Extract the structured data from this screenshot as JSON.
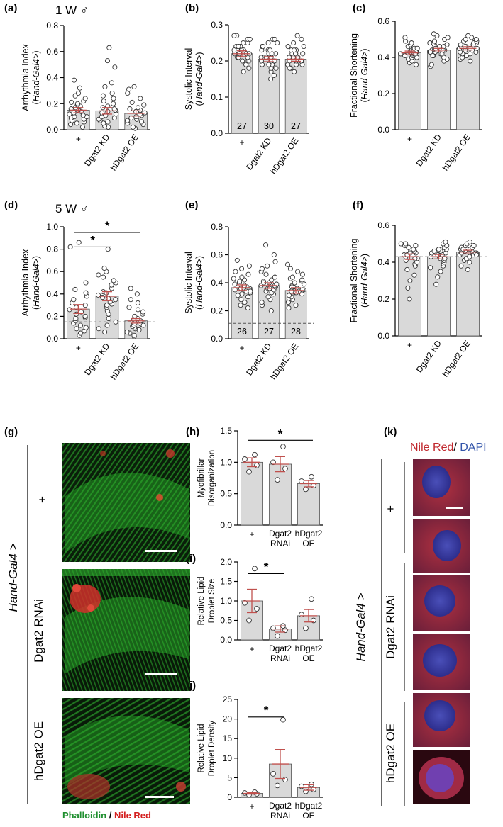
{
  "figure": {
    "cohort_labels": [
      "1 W ♂",
      "5 W ♂"
    ],
    "genotype_driver": "Hand-Gal4 >",
    "genotype_rows": [
      "+",
      "Dgat2 RNAi",
      "hDgat2 OE"
    ],
    "stain_legend_g": [
      {
        "text": "Phalloidin",
        "color": "#1f8f2f"
      },
      {
        "text": " / ",
        "color": "#000000"
      },
      {
        "text": "Nile Red",
        "color": "#d42020"
      }
    ],
    "stain_legend_k": [
      {
        "text": "Nile Red",
        "color": "#c0272d"
      },
      {
        "text": "/ ",
        "color": "#000000"
      },
      {
        "text": "DAPI",
        "color": "#3355aa"
      }
    ],
    "panel_labels": {
      "g": "(g)",
      "k": "(k)"
    }
  },
  "chart_data": [
    {
      "id": "a",
      "label": "(a)",
      "type": "bar",
      "ylabel": "Arrhythmia Index",
      "ylabel_sub": "(Hand-Gal4>)",
      "categories": [
        "+",
        "Dgat2 KD",
        "hDgat2 OE"
      ],
      "ylim": [
        0,
        0.8
      ],
      "yticks": [
        0.0,
        0.2,
        0.4,
        0.6,
        0.8
      ],
      "values": [
        0.15,
        0.145,
        0.125
      ],
      "errors": [
        0.02,
        0.025,
        0.02
      ],
      "n_labels": [],
      "baseline": null,
      "points": [
        [
          0.02,
          0.04,
          0.05,
          0.06,
          0.07,
          0.08,
          0.09,
          0.1,
          0.1,
          0.11,
          0.12,
          0.13,
          0.14,
          0.15,
          0.16,
          0.17,
          0.18,
          0.19,
          0.2,
          0.21,
          0.22,
          0.24,
          0.26,
          0.28,
          0.32,
          0.38
        ],
        [
          0.02,
          0.03,
          0.05,
          0.06,
          0.07,
          0.08,
          0.09,
          0.1,
          0.11,
          0.12,
          0.13,
          0.14,
          0.15,
          0.16,
          0.17,
          0.18,
          0.2,
          0.22,
          0.24,
          0.26,
          0.28,
          0.33,
          0.36,
          0.48,
          0.53,
          0.63
        ],
        [
          0.01,
          0.02,
          0.04,
          0.05,
          0.06,
          0.07,
          0.08,
          0.09,
          0.1,
          0.11,
          0.12,
          0.13,
          0.14,
          0.15,
          0.16,
          0.17,
          0.19,
          0.21,
          0.24,
          0.28,
          0.31,
          0.33
        ]
      ],
      "sig": []
    },
    {
      "id": "b",
      "label": "(b)",
      "type": "bar",
      "ylabel": "Systolic Interval",
      "ylabel_sub": "(Hand-Gal4>)",
      "categories": [
        "+",
        "Dgat2 KD",
        "hDgat2 OE"
      ],
      "ylim": [
        0,
        0.3
      ],
      "yticks": [
        0.0,
        0.1,
        0.2,
        0.3
      ],
      "values": [
        0.22,
        0.205,
        0.205
      ],
      "errors": [
        0.008,
        0.007,
        0.006
      ],
      "n_labels": [
        "27",
        "30",
        "27"
      ],
      "baseline": null,
      "points": [
        [
          0.17,
          0.18,
          0.19,
          0.19,
          0.2,
          0.2,
          0.2,
          0.21,
          0.21,
          0.21,
          0.22,
          0.22,
          0.22,
          0.22,
          0.23,
          0.23,
          0.23,
          0.24,
          0.24,
          0.24,
          0.25,
          0.25,
          0.26,
          0.26,
          0.27,
          0.27,
          0.23
        ],
        [
          0.15,
          0.16,
          0.17,
          0.18,
          0.18,
          0.19,
          0.19,
          0.19,
          0.2,
          0.2,
          0.2,
          0.2,
          0.21,
          0.21,
          0.21,
          0.21,
          0.22,
          0.22,
          0.22,
          0.22,
          0.23,
          0.23,
          0.23,
          0.24,
          0.24,
          0.25,
          0.25,
          0.26,
          0.26,
          0.2
        ],
        [
          0.17,
          0.18,
          0.18,
          0.19,
          0.19,
          0.19,
          0.2,
          0.2,
          0.2,
          0.2,
          0.21,
          0.21,
          0.21,
          0.21,
          0.22,
          0.22,
          0.22,
          0.22,
          0.23,
          0.23,
          0.23,
          0.24,
          0.24,
          0.25,
          0.26,
          0.27,
          0.21
        ]
      ],
      "sig": []
    },
    {
      "id": "c",
      "label": "(c)",
      "type": "bar",
      "ylabel": "Fractional Shortening",
      "ylabel_sub": "(Hand-Gal4>)",
      "categories": [
        "+",
        "Dgat2 KD",
        "hDgat2 OE"
      ],
      "ylim": [
        0,
        0.6
      ],
      "yticks": [
        0.0,
        0.2,
        0.4,
        0.6
      ],
      "values": [
        0.425,
        0.44,
        0.45
      ],
      "errors": [
        0.01,
        0.01,
        0.009
      ],
      "n_labels": [],
      "baseline": null,
      "points": [
        [
          0.36,
          0.37,
          0.38,
          0.39,
          0.4,
          0.4,
          0.41,
          0.41,
          0.42,
          0.42,
          0.42,
          0.43,
          0.43,
          0.43,
          0.44,
          0.44,
          0.44,
          0.45,
          0.45,
          0.46,
          0.46,
          0.47,
          0.48,
          0.49,
          0.51,
          0.43,
          0.42
        ],
        [
          0.35,
          0.36,
          0.38,
          0.39,
          0.4,
          0.41,
          0.41,
          0.42,
          0.42,
          0.43,
          0.43,
          0.44,
          0.44,
          0.44,
          0.45,
          0.45,
          0.46,
          0.46,
          0.47,
          0.47,
          0.48,
          0.48,
          0.49,
          0.5,
          0.51,
          0.52,
          0.53,
          0.44,
          0.43,
          0.45
        ],
        [
          0.38,
          0.39,
          0.4,
          0.41,
          0.42,
          0.42,
          0.43,
          0.43,
          0.44,
          0.44,
          0.45,
          0.45,
          0.45,
          0.46,
          0.46,
          0.47,
          0.47,
          0.48,
          0.48,
          0.49,
          0.49,
          0.5,
          0.5,
          0.51,
          0.52,
          0.45,
          0.46
        ]
      ],
      "sig": []
    },
    {
      "id": "d",
      "label": "(d)",
      "type": "bar",
      "ylabel": "Arrhythmia Index",
      "ylabel_sub": "(Hand-Gal4>)",
      "categories": [
        "+",
        "Dgat2 KD",
        "hDgat2 OE"
      ],
      "ylim": [
        0,
        1.0
      ],
      "yticks": [
        0.0,
        0.2,
        0.4,
        0.6,
        0.8,
        1.0
      ],
      "values": [
        0.265,
        0.38,
        0.16
      ],
      "errors": [
        0.04,
        0.04,
        0.02
      ],
      "n_labels": [],
      "baseline": 0.15,
      "points": [
        [
          0.03,
          0.05,
          0.07,
          0.09,
          0.1,
          0.12,
          0.14,
          0.16,
          0.18,
          0.19,
          0.2,
          0.22,
          0.24,
          0.26,
          0.28,
          0.3,
          0.32,
          0.35,
          0.38,
          0.41,
          0.44,
          0.5,
          0.82,
          0.86
        ],
        [
          0.06,
          0.09,
          0.12,
          0.15,
          0.18,
          0.22,
          0.25,
          0.28,
          0.31,
          0.33,
          0.35,
          0.37,
          0.39,
          0.42,
          0.45,
          0.48,
          0.5,
          0.52,
          0.55,
          0.57,
          0.6,
          0.63,
          0.8,
          0.41,
          0.36,
          0.3
        ],
        [
          0.02,
          0.03,
          0.05,
          0.06,
          0.08,
          0.09,
          0.1,
          0.11,
          0.12,
          0.13,
          0.14,
          0.15,
          0.16,
          0.17,
          0.18,
          0.2,
          0.22,
          0.24,
          0.26,
          0.28,
          0.32,
          0.35,
          0.4,
          0.45,
          0.14,
          0.12
        ]
      ],
      "sig": [
        {
          "from": 0,
          "to": 1,
          "y": 0.82,
          "label": "*"
        },
        {
          "from": 0,
          "to": 2,
          "y": 0.95,
          "label": "*"
        }
      ]
    },
    {
      "id": "e",
      "label": "(e)",
      "type": "bar",
      "ylabel": "Systolic Interval",
      "ylabel_sub": "(Hand-Gal4>)",
      "categories": [
        "+",
        "Dgat2 KD",
        "hDgat2 OE"
      ],
      "ylim": [
        0,
        0.8
      ],
      "yticks": [
        0.0,
        0.2,
        0.4,
        0.6,
        0.8
      ],
      "values": [
        0.365,
        0.38,
        0.345
      ],
      "errors": [
        0.02,
        0.02,
        0.02
      ],
      "n_labels": [
        "26",
        "27",
        "28"
      ],
      "baseline": 0.11,
      "points": [
        [
          0.22,
          0.24,
          0.26,
          0.28,
          0.3,
          0.31,
          0.32,
          0.33,
          0.34,
          0.35,
          0.36,
          0.37,
          0.38,
          0.39,
          0.4,
          0.41,
          0.42,
          0.43,
          0.44,
          0.46,
          0.48,
          0.5,
          0.52,
          0.56,
          0.36,
          0.34
        ],
        [
          0.2,
          0.24,
          0.26,
          0.28,
          0.3,
          0.32,
          0.33,
          0.34,
          0.35,
          0.36,
          0.37,
          0.38,
          0.39,
          0.4,
          0.41,
          0.42,
          0.44,
          0.46,
          0.48,
          0.5,
          0.52,
          0.55,
          0.6,
          0.67,
          0.38,
          0.36,
          0.4
        ],
        [
          0.22,
          0.24,
          0.26,
          0.28,
          0.29,
          0.3,
          0.31,
          0.32,
          0.33,
          0.34,
          0.35,
          0.36,
          0.37,
          0.38,
          0.39,
          0.4,
          0.41,
          0.42,
          0.43,
          0.44,
          0.46,
          0.48,
          0.5,
          0.53,
          0.34,
          0.33,
          0.35,
          0.37
        ]
      ],
      "sig": []
    },
    {
      "id": "f",
      "label": "(f)",
      "type": "bar",
      "ylabel": "Fractional Shortening",
      "ylabel_sub": "(Hand-Gal4>)",
      "categories": [
        "+",
        "Dgat2 KD",
        "hDgat2 OE"
      ],
      "ylim": [
        0,
        0.6
      ],
      "yticks": [
        0.0,
        0.2,
        0.4,
        0.6
      ],
      "values": [
        0.43,
        0.43,
        0.455
      ],
      "errors": [
        0.015,
        0.012,
        0.01
      ],
      "n_labels": [],
      "baseline": 0.43,
      "points": [
        [
          0.2,
          0.26,
          0.3,
          0.33,
          0.36,
          0.38,
          0.39,
          0.4,
          0.41,
          0.42,
          0.43,
          0.44,
          0.44,
          0.45,
          0.46,
          0.46,
          0.47,
          0.48,
          0.48,
          0.49,
          0.49,
          0.5,
          0.5,
          0.42,
          0.44,
          0.45
        ],
        [
          0.28,
          0.32,
          0.35,
          0.37,
          0.38,
          0.39,
          0.4,
          0.41,
          0.42,
          0.43,
          0.43,
          0.44,
          0.45,
          0.45,
          0.46,
          0.47,
          0.47,
          0.48,
          0.49,
          0.5,
          0.51,
          0.44,
          0.42,
          0.46
        ],
        [
          0.36,
          0.38,
          0.4,
          0.41,
          0.42,
          0.43,
          0.44,
          0.44,
          0.45,
          0.45,
          0.46,
          0.46,
          0.47,
          0.47,
          0.48,
          0.48,
          0.49,
          0.49,
          0.5,
          0.51,
          0.45,
          0.46,
          0.47,
          0.44
        ]
      ],
      "sig": []
    },
    {
      "id": "h",
      "label": "(h)",
      "type": "bar",
      "ylabel": "Myofibrillar",
      "ylabel_sub": "Disorganization",
      "categories": [
        "+",
        "Dgat2|RNAi",
        "hDgat2|OE"
      ],
      "ylim": [
        0,
        1.5
      ],
      "yticks": [
        0.0,
        0.5,
        1.0,
        1.5
      ],
      "values": [
        1.0,
        0.97,
        0.66
      ],
      "errors": [
        0.07,
        0.12,
        0.05
      ],
      "n_labels": [],
      "baseline": null,
      "points": [
        [
          0.85,
          0.95,
          1.05,
          1.12
        ],
        [
          0.72,
          0.9,
          1.0,
          1.25
        ],
        [
          0.57,
          0.63,
          0.7,
          0.77
        ]
      ],
      "sig": [
        {
          "from": 0,
          "to": 2,
          "y": 1.35,
          "label": "*"
        }
      ]
    },
    {
      "id": "i",
      "label": "(i)",
      "type": "bar",
      "ylabel": "Relative Lipid",
      "ylabel_sub": "Droplet Size",
      "categories": [
        "+",
        "Dgat2|RNAi",
        "hDgat2|OE"
      ],
      "ylim": [
        0,
        2.0
      ],
      "yticks": [
        0.0,
        0.5,
        1.0,
        1.5,
        2.0
      ],
      "values": [
        1.0,
        0.28,
        0.62
      ],
      "errors": [
        0.3,
        0.08,
        0.16
      ],
      "n_labels": [],
      "baseline": null,
      "points": [
        [
          0.5,
          0.8,
          0.95,
          1.83
        ],
        [
          0.1,
          0.25,
          0.3,
          0.36
        ],
        [
          0.3,
          0.5,
          0.65,
          1.05
        ]
      ],
      "sig": [
        {
          "from": 0,
          "to": 1,
          "y": 1.7,
          "label": "*"
        }
      ]
    },
    {
      "id": "j",
      "label": "(j)",
      "type": "bar",
      "ylabel": "Relative Lipid",
      "ylabel_sub": "Droplet Density",
      "categories": [
        "+",
        "Dgat2|RNAi",
        "hDgat2|OE"
      ],
      "ylim": [
        0,
        25
      ],
      "yticks": [
        0,
        5,
        10,
        15,
        20,
        25
      ],
      "values": [
        1.0,
        8.5,
        2.5
      ],
      "errors": [
        0.2,
        3.7,
        0.7
      ],
      "n_labels": [],
      "baseline": null,
      "points": [
        [
          0.6,
          0.9,
          1.1,
          1.3
        ],
        [
          3.0,
          4.5,
          6.0,
          19.8
        ],
        [
          1.5,
          2.0,
          2.8,
          3.3
        ]
      ],
      "sig": [
        {
          "from": 0,
          "to": 1,
          "y": 20.5,
          "label": "*"
        }
      ]
    }
  ]
}
